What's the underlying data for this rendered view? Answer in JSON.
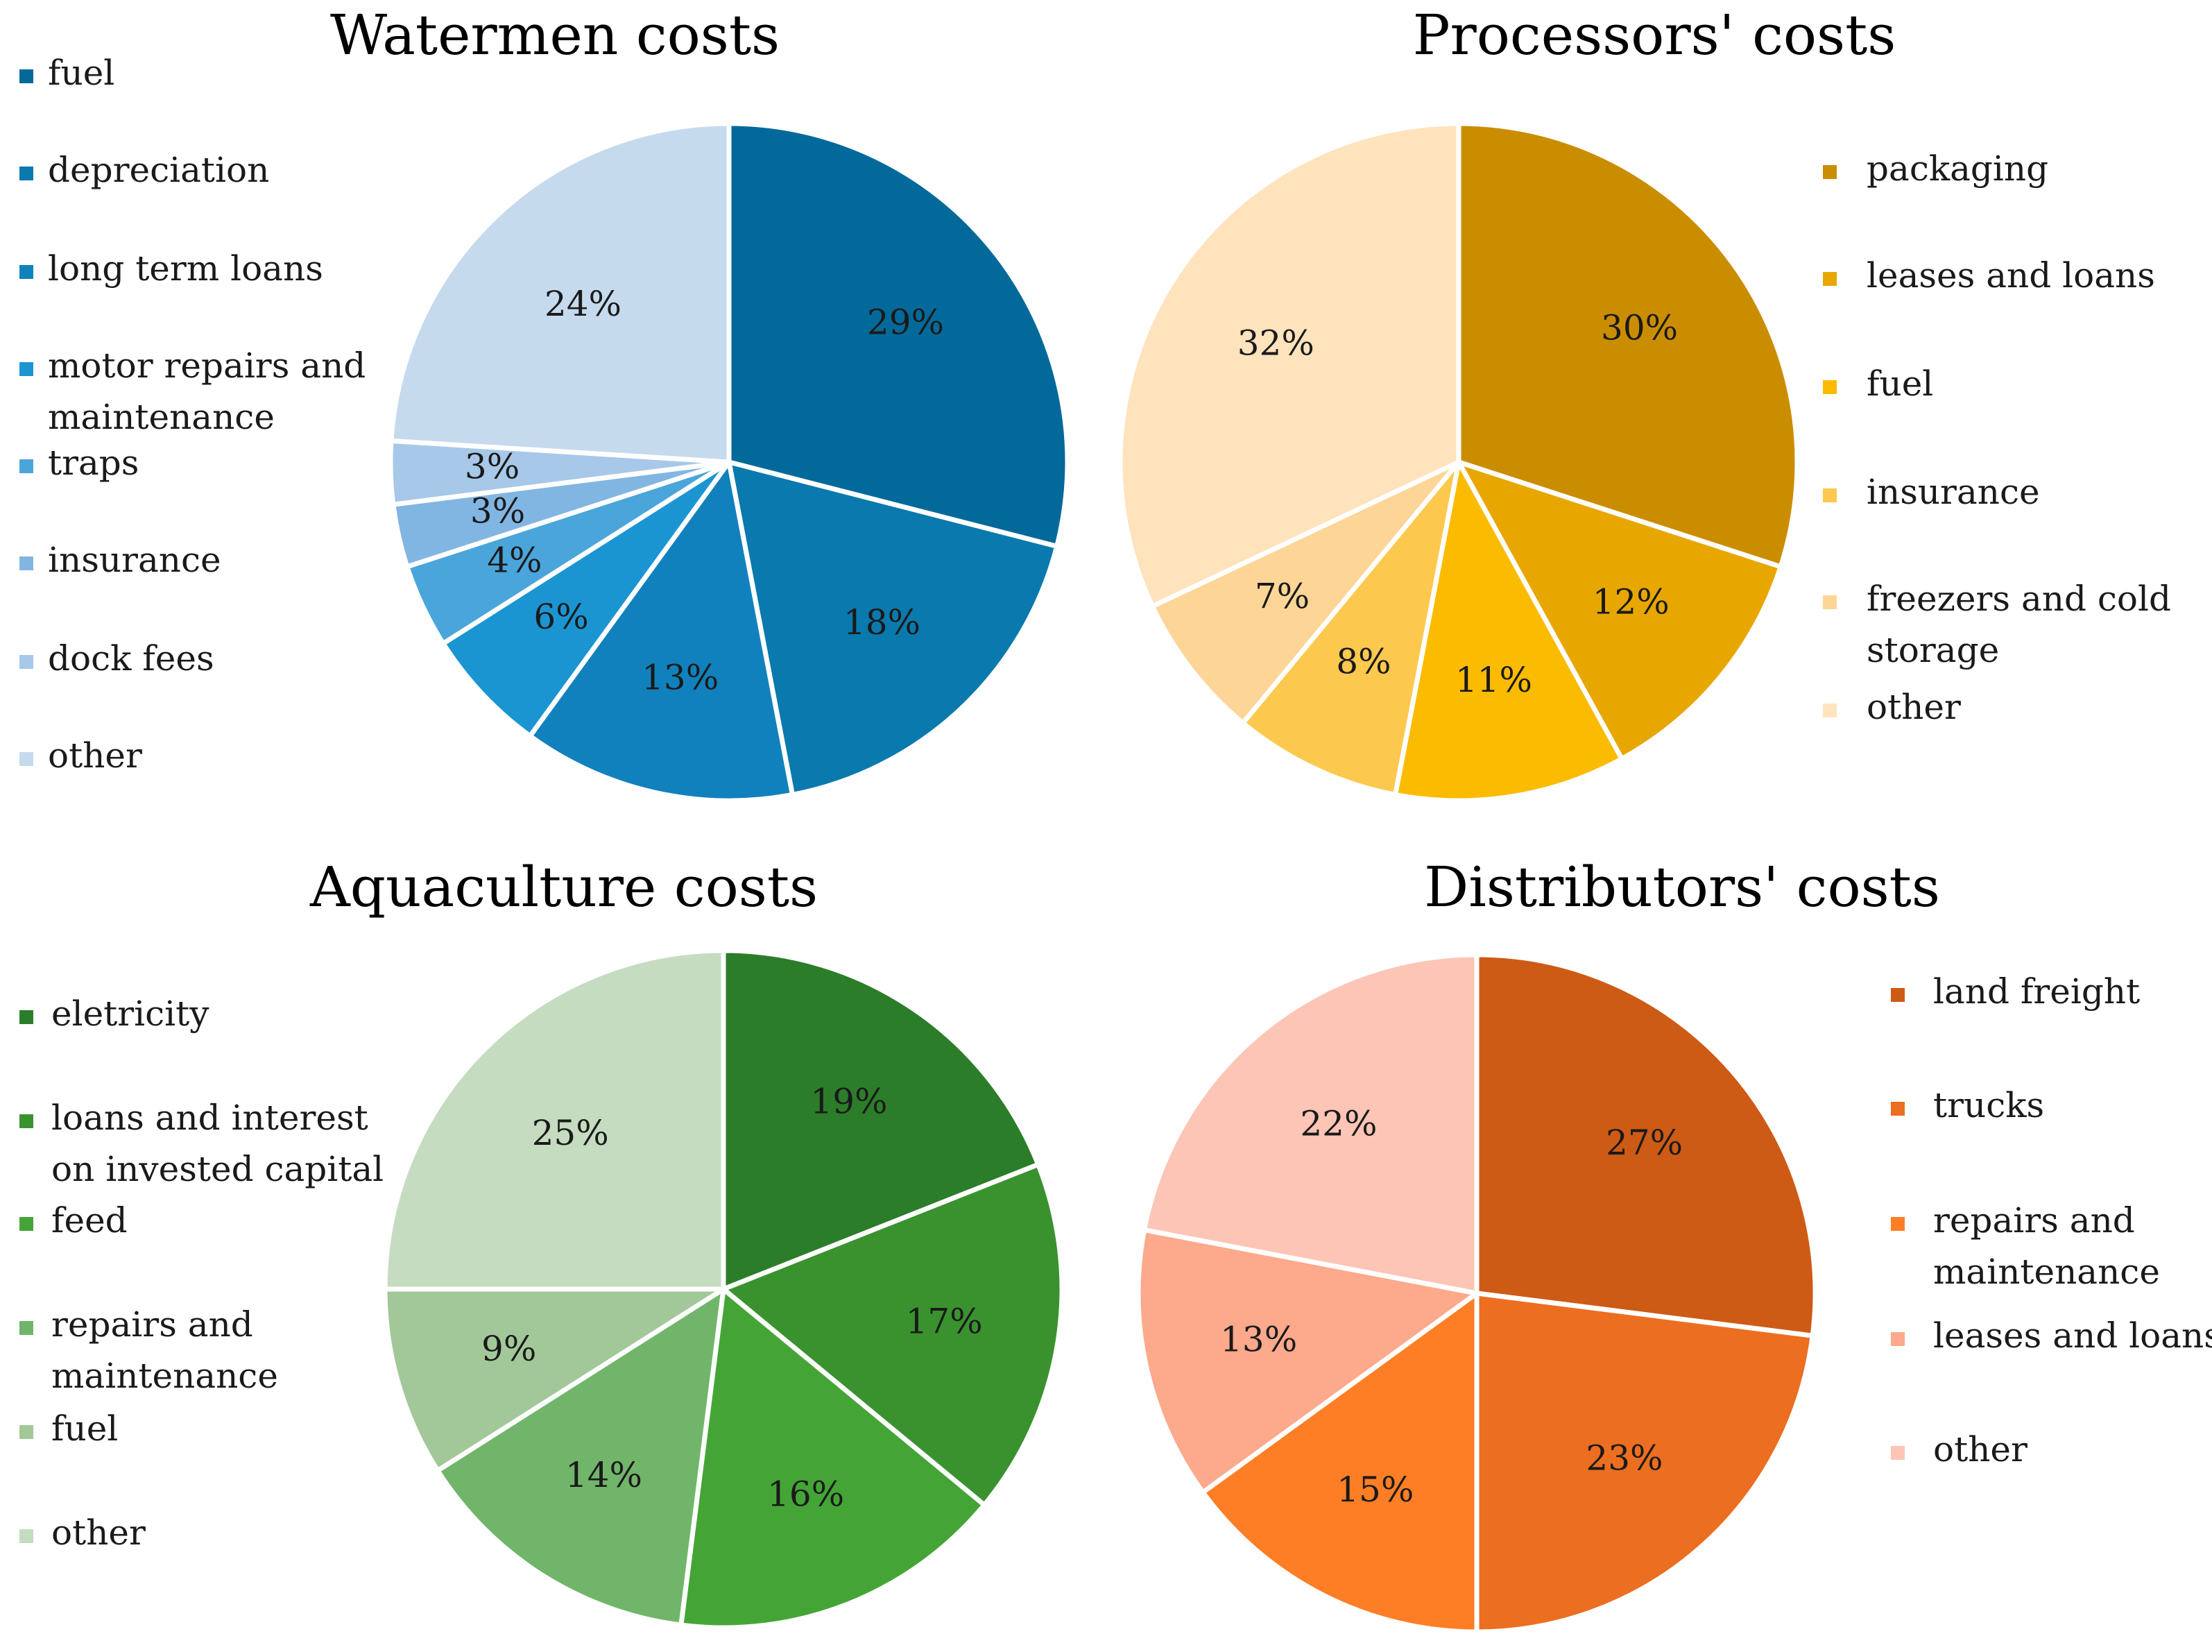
{
  "chart_data": [
    {
      "type": "pie",
      "title": "Watermen costs",
      "legend_position": "left",
      "slices": [
        {
          "label": "fuel",
          "value": 29,
          "display": "29%",
          "color": "#03699a"
        },
        {
          "label": "depreciation",
          "value": 18,
          "display": "18%",
          "color": "#0a79ad"
        },
        {
          "label": "long term loans",
          "value": 13,
          "display": "13%",
          "color": "#1181bd"
        },
        {
          "label": [
            "motor repairs and",
            "maintenance"
          ],
          "value": 6,
          "display": "6%",
          "color": "#1b95d2"
        },
        {
          "label": "traps",
          "value": 4,
          "display": "4%",
          "color": "#4aa5da"
        },
        {
          "label": "insurance",
          "value": 3,
          "display": "3%",
          "color": "#82b6e2"
        },
        {
          "label": "dock fees",
          "value": 3,
          "display": "3%",
          "color": "#a7c8e8"
        },
        {
          "label": "other",
          "value": 24,
          "display": "24%",
          "color": "#c6daee"
        }
      ]
    },
    {
      "type": "pie",
      "title": "Processors' costs",
      "legend_position": "right",
      "slices": [
        {
          "label": "packaging",
          "value": 30,
          "display": "30%",
          "color": "#cb8d00"
        },
        {
          "label": "leases and loans",
          "value": 12,
          "display": "12%",
          "color": "#e8a600"
        },
        {
          "label": "fuel",
          "value": 11,
          "display": "11%",
          "color": "#fbbb00"
        },
        {
          "label": "insurance",
          "value": 8,
          "display": "8%",
          "color": "#fdc84e"
        },
        {
          "label": [
            "freezers and cold",
            "storage"
          ],
          "value": 7,
          "display": "7%",
          "color": "#fdd597"
        },
        {
          "label": "other",
          "value": 32,
          "display": "32%",
          "color": "#fee3bd"
        }
      ]
    },
    {
      "type": "pie",
      "title": "Aquaculture costs",
      "legend_position": "left",
      "slices": [
        {
          "label": "eletricity",
          "value": 19,
          "display": "19%",
          "color": "#2c7d29"
        },
        {
          "label": [
            "loans and interest",
            "on invested capital"
          ],
          "value": 17,
          "display": "17%",
          "color": "#3a922f"
        },
        {
          "label": "feed",
          "value": 16,
          "display": "16%",
          "color": "#44a536"
        },
        {
          "label": [
            "repairs and",
            "maintenance"
          ],
          "value": 14,
          "display": "14%",
          "color": "#71b56a"
        },
        {
          "label": "fuel",
          "value": 9,
          "display": "9%",
          "color": "#a2c899"
        },
        {
          "label": "other",
          "value": 25,
          "display": "25%",
          "color": "#c5dcc0"
        }
      ]
    },
    {
      "type": "pie",
      "title": "Distributors' costs",
      "legend_position": "right",
      "slices": [
        {
          "label": "land freight",
          "value": 27,
          "display": "27%",
          "color": "#cd5b15"
        },
        {
          "label": "trucks",
          "value": 23,
          "display": "23%",
          "color": "#ec6e20"
        },
        {
          "label": [
            "repairs and",
            "maintenance"
          ],
          "value": 15,
          "display": "15%",
          "color": "#fd7e25"
        },
        {
          "label": "leases and loans",
          "value": 13,
          "display": "13%",
          "color": "#fda98b"
        },
        {
          "label": "other",
          "value": 22,
          "display": "22%",
          "color": "#fdc5b6"
        }
      ]
    }
  ]
}
